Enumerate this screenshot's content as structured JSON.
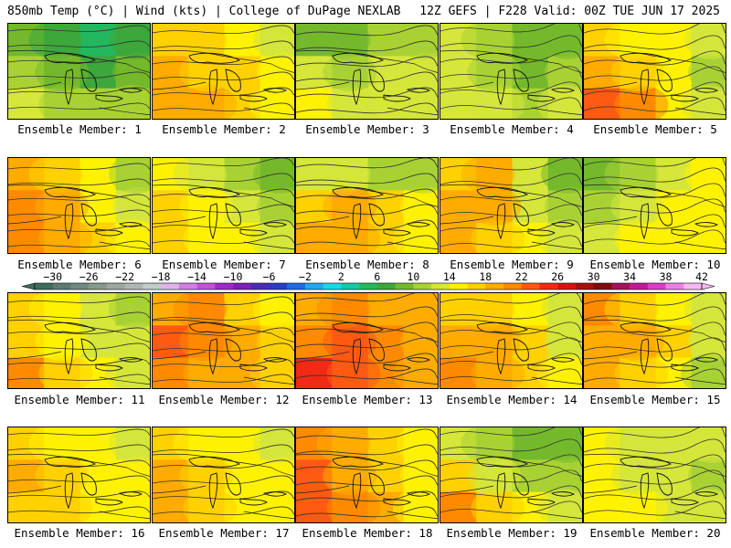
{
  "header": {
    "left": "850mb Temp (°C) | Wind (kts) | College of DuPage NEXLAB",
    "right": "12Z GEFS | F228 Valid: 00Z TUE JUN 17 2025"
  },
  "members": [
    {
      "label": "Ensemble Member: 1",
      "temp_pattern": [
        8,
        6,
        5,
        7,
        10,
        8,
        6,
        8,
        12,
        11,
        10,
        10
      ]
    },
    {
      "label": "Ensemble Member: 2",
      "temp_pattern": [
        17,
        16,
        15,
        13,
        18,
        17,
        16,
        14,
        19,
        18,
        16,
        15
      ]
    },
    {
      "label": "Ensemble Member: 3",
      "temp_pattern": [
        9,
        8,
        10,
        11,
        12,
        11,
        12,
        13,
        14,
        13,
        12,
        13
      ]
    },
    {
      "label": "Ensemble Member: 4",
      "temp_pattern": [
        13,
        11,
        9,
        8,
        12,
        10,
        9,
        10,
        13,
        12,
        11,
        12
      ]
    },
    {
      "label": "Ensemble Member: 5",
      "temp_pattern": [
        16,
        15,
        14,
        12,
        18,
        17,
        15,
        11,
        22,
        20,
        15,
        13
      ]
    },
    {
      "label": "Ensemble Member: 6",
      "temp_pattern": [
        19,
        17,
        14,
        11,
        21,
        19,
        15,
        13,
        21,
        19,
        16,
        14
      ]
    },
    {
      "label": "Ensemble Member: 7",
      "temp_pattern": [
        15,
        13,
        11,
        9,
        16,
        14,
        13,
        11,
        17,
        15,
        14,
        12
      ]
    },
    {
      "label": "Ensemble Member: 8",
      "temp_pattern": [
        13,
        12,
        11,
        10,
        17,
        18,
        16,
        14,
        18,
        19,
        17,
        15
      ]
    },
    {
      "label": "Ensemble Member: 9",
      "temp_pattern": [
        17,
        18,
        12,
        9,
        19,
        18,
        13,
        10,
        19,
        17,
        14,
        12
      ]
    },
    {
      "label": "Ensemble Member: 10",
      "temp_pattern": [
        8,
        10,
        13,
        14,
        11,
        13,
        14,
        15,
        13,
        14,
        14,
        15
      ]
    },
    {
      "label": "Ensemble Member: 11",
      "temp_pattern": [
        16,
        14,
        12,
        11,
        17,
        14,
        12,
        12,
        20,
        16,
        14,
        13
      ]
    },
    {
      "label": "Ensemble Member: 12",
      "temp_pattern": [
        19,
        20,
        17,
        15,
        22,
        21,
        19,
        17,
        21,
        19,
        18,
        16
      ]
    },
    {
      "label": "Ensemble Member: 13",
      "temp_pattern": [
        19,
        20,
        19,
        18,
        21,
        22,
        21,
        19,
        24,
        22,
        20,
        18
      ]
    },
    {
      "label": "Ensemble Member: 14",
      "temp_pattern": [
        17,
        16,
        14,
        12,
        19,
        18,
        16,
        13,
        21,
        19,
        17,
        14
      ]
    },
    {
      "label": "Ensemble Member: 15",
      "temp_pattern": [
        20,
        17,
        15,
        12,
        19,
        18,
        16,
        12,
        18,
        17,
        15,
        11
      ]
    },
    {
      "label": "Ensemble Member: 16",
      "temp_pattern": [
        17,
        15,
        14,
        13,
        18,
        16,
        15,
        14,
        17,
        16,
        15,
        14
      ]
    },
    {
      "label": "Ensemble Member: 17",
      "temp_pattern": [
        16,
        15,
        14,
        13,
        18,
        16,
        15,
        14,
        19,
        17,
        15,
        14
      ]
    },
    {
      "label": "Ensemble Member: 18",
      "temp_pattern": [
        20,
        18,
        16,
        14,
        22,
        19,
        17,
        15,
        22,
        20,
        18,
        15
      ]
    },
    {
      "label": "Ensemble Member: 19",
      "temp_pattern": [
        13,
        11,
        9,
        8,
        17,
        13,
        11,
        10,
        21,
        17,
        14,
        12
      ]
    },
    {
      "label": "Ensemble Member: 20",
      "temp_pattern": [
        14,
        13,
        12,
        12,
        14,
        13,
        12,
        11,
        15,
        14,
        13,
        13
      ]
    }
  ],
  "colorbar": {
    "ticks": [
      "-30",
      "-26",
      "-22",
      "-18",
      "-14",
      "-10",
      "-6",
      "-2",
      "2",
      "6",
      "10",
      "14",
      "18",
      "22",
      "26",
      "30",
      "34",
      "38",
      "42"
    ],
    "bins": [
      {
        "lo": -32,
        "color": "#3e6b5d"
      },
      {
        "lo": -30,
        "color": "#5d7a6f"
      },
      {
        "lo": -28,
        "color": "#708a80"
      },
      {
        "lo": -26,
        "color": "#87998f"
      },
      {
        "lo": -24,
        "color": "#9aa9a1"
      },
      {
        "lo": -22,
        "color": "#adb8b3"
      },
      {
        "lo": -20,
        "color": "#c3ccc8"
      },
      {
        "lo": -18,
        "color": "#e0b3e8"
      },
      {
        "lo": -16,
        "color": "#d37ee3"
      },
      {
        "lo": -14,
        "color": "#c64fd8"
      },
      {
        "lo": -12,
        "color": "#a228c9"
      },
      {
        "lo": -10,
        "color": "#7d1fb8"
      },
      {
        "lo": -8,
        "color": "#4a2cb4"
      },
      {
        "lo": -6,
        "color": "#2a3cc4"
      },
      {
        "lo": -4,
        "color": "#1e6ce0"
      },
      {
        "lo": -2,
        "color": "#22a8f0"
      },
      {
        "lo": 0,
        "color": "#21d3e6"
      },
      {
        "lo": 2,
        "color": "#17c9a6"
      },
      {
        "lo": 4,
        "color": "#23b860"
      },
      {
        "lo": 6,
        "color": "#3ca73a"
      },
      {
        "lo": 8,
        "color": "#74b92c"
      },
      {
        "lo": 10,
        "color": "#a8d234"
      },
      {
        "lo": 12,
        "color": "#d6e63a"
      },
      {
        "lo": 14,
        "color": "#fff200"
      },
      {
        "lo": 16,
        "color": "#ffd100"
      },
      {
        "lo": 18,
        "color": "#ffab00"
      },
      {
        "lo": 20,
        "color": "#ff8a00"
      },
      {
        "lo": 22,
        "color": "#ff5a12"
      },
      {
        "lo": 24,
        "color": "#f02a14"
      },
      {
        "lo": 26,
        "color": "#d4150f"
      },
      {
        "lo": 28,
        "color": "#a8100d"
      },
      {
        "lo": 30,
        "color": "#7d0d0d"
      },
      {
        "lo": 32,
        "color": "#a4125a"
      },
      {
        "lo": 34,
        "color": "#c21a96"
      },
      {
        "lo": 36,
        "color": "#de3cc8"
      },
      {
        "lo": 38,
        "color": "#ef7fe6"
      },
      {
        "lo": 40,
        "color": "#f7b9f2"
      }
    ],
    "min": -32,
    "max": 42
  }
}
